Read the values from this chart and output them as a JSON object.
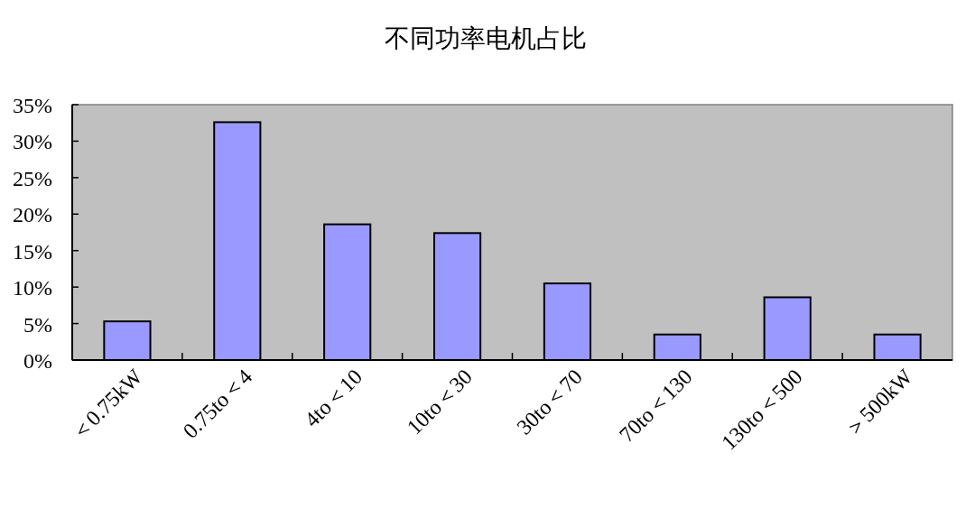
{
  "chart_data": {
    "type": "bar",
    "title": "不同功率电机占比",
    "categories": [
      "＜0.75kW",
      "0.75to＜4",
      "4to＜10",
      "10to＜30",
      "30to＜70",
      "70to＜130",
      "130to＜500",
      "＞500kW"
    ],
    "values": [
      5.3,
      32.6,
      18.6,
      17.4,
      10.5,
      3.5,
      8.6,
      3.5
    ],
    "color": "#9999ff",
    "ylim": [
      0,
      35
    ],
    "yticks": [
      {
        "value": 0,
        "label": "0%"
      },
      {
        "value": 5,
        "label": "5%"
      },
      {
        "value": 10,
        "label": "10%"
      },
      {
        "value": 15,
        "label": "15%"
      },
      {
        "value": 20,
        "label": "20%"
      },
      {
        "value": 25,
        "label": "25%"
      },
      {
        "value": 30,
        "label": "30%"
      },
      {
        "value": 35,
        "label": "35%"
      }
    ],
    "grid": false
  }
}
